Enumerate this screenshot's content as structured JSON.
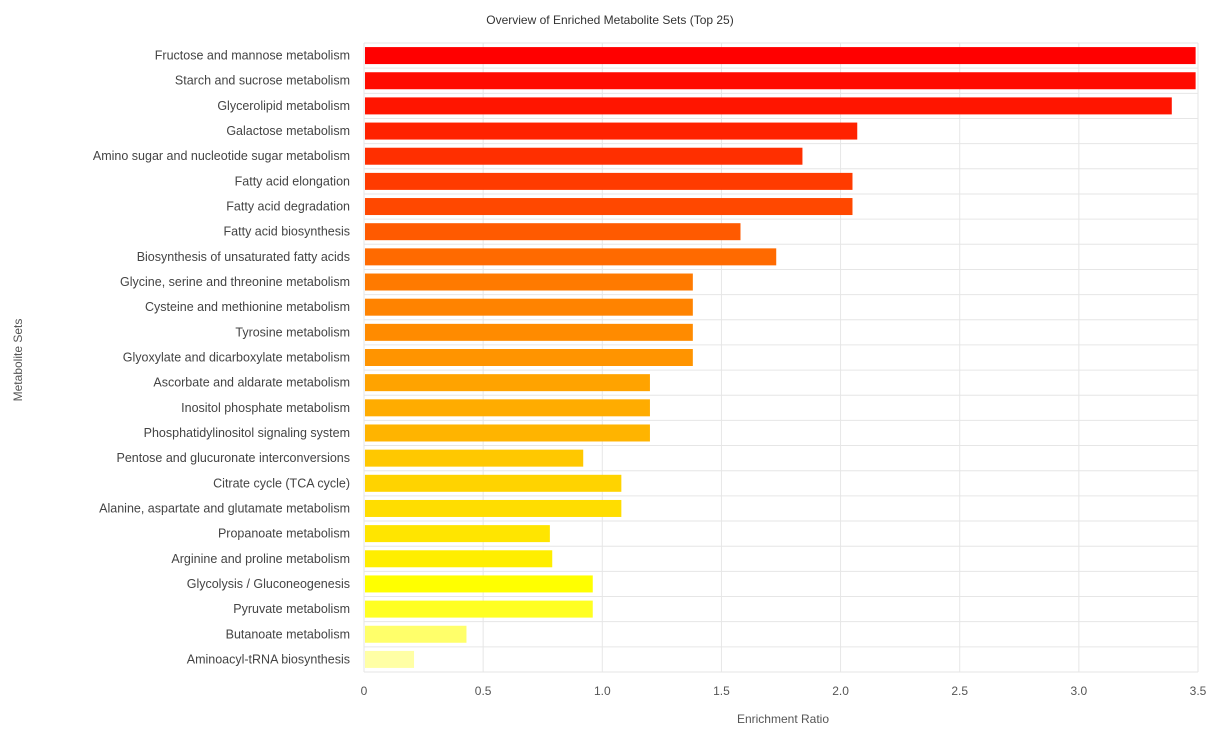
{
  "chart_data": {
    "type": "bar",
    "orientation": "horizontal",
    "title": "Overview of Enriched Metabolite Sets (Top 25)",
    "xlabel": "Enrichment Ratio",
    "ylabel": "Metabolite Sets",
    "xlim": [
      0,
      3.5
    ],
    "xticks": [
      0,
      0.5,
      1.0,
      1.5,
      2.0,
      2.5,
      3.0,
      3.5
    ],
    "xtick_labels": [
      "0",
      "0.5",
      "1.0",
      "1.5",
      "2.0",
      "2.5",
      "3.0",
      "3.5"
    ],
    "grid": true,
    "legend": "none",
    "categories": [
      "Fructose and mannose metabolism",
      "Starch and sucrose metabolism",
      "Glycerolipid metabolism",
      "Galactose metabolism",
      "Amino sugar and nucleotide sugar metabolism",
      "Fatty acid elongation",
      "Fatty acid degradation",
      "Fatty acid biosynthesis",
      "Biosynthesis of unsaturated fatty acids",
      "Glycine, serine and threonine metabolism",
      "Cysteine and methionine metabolism",
      "Tyrosine metabolism",
      "Glyoxylate and dicarboxylate metabolism",
      "Ascorbate and aldarate metabolism",
      "Inositol phosphate metabolism",
      "Phosphatidylinositol signaling system",
      "Pentose and glucuronate interconversions",
      "Citrate cycle (TCA cycle)",
      "Alanine, aspartate and glutamate metabolism",
      "Propanoate metabolism",
      "Arginine and proline metabolism",
      "Glycolysis / Gluconeogenesis",
      "Pyruvate metabolism",
      "Butanoate metabolism",
      "Aminoacyl-tRNA biosynthesis"
    ],
    "values": [
      3.49,
      3.49,
      3.39,
      2.07,
      1.84,
      2.05,
      2.05,
      1.58,
      1.73,
      1.38,
      1.38,
      1.38,
      1.38,
      1.2,
      1.2,
      1.2,
      0.92,
      1.08,
      1.08,
      0.78,
      0.79,
      0.96,
      0.96,
      0.43,
      0.21
    ],
    "colors": [
      "#ff0000",
      "#ff0b00",
      "#ff1500",
      "#ff2200",
      "#ff2f00",
      "#ff3b00",
      "#ff4800",
      "#ff5a00",
      "#ff6a00",
      "#ff7a00",
      "#ff8300",
      "#ff8b00",
      "#ff9400",
      "#ffa300",
      "#ffac00",
      "#ffb400",
      "#ffc800",
      "#ffd300",
      "#ffdd00",
      "#ffe500",
      "#ffee00",
      "#ffff00",
      "#ffff22",
      "#ffff6a",
      "#ffffa5"
    ]
  }
}
